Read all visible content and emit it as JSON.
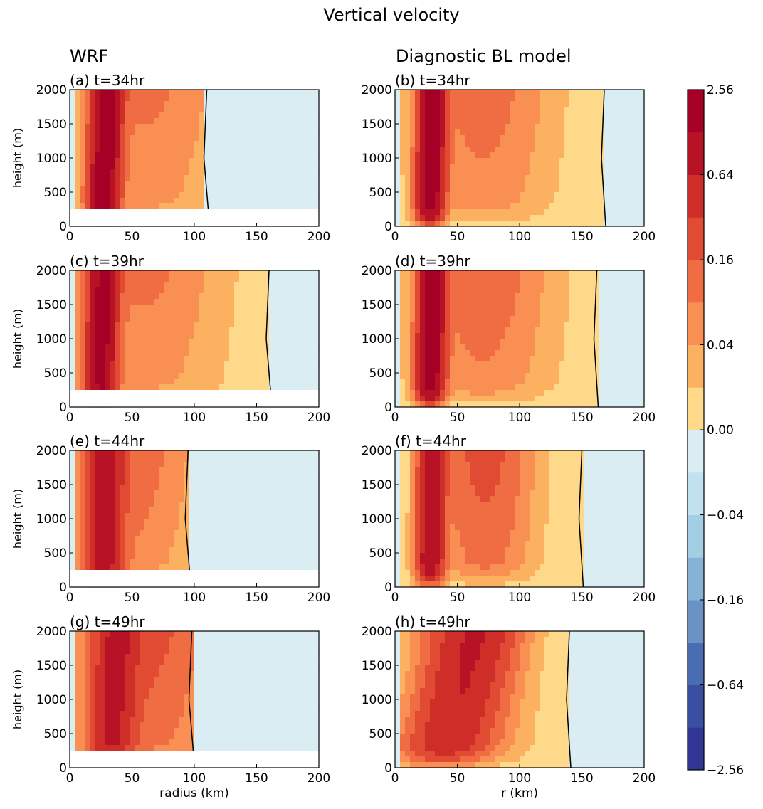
{
  "title": "Vertical velocity",
  "column_titles": [
    "WRF",
    "Diagnostic BL model"
  ],
  "colors": {
    "levels": [
      "#313695",
      "#3b4fa2",
      "#4a6cb0",
      "#6a93c4",
      "#86b3d5",
      "#a3cfe4",
      "#bfe2ee",
      "#d9edf3",
      "#fed98a",
      "#fcb161",
      "#f98f52",
      "#f06c43",
      "#e24b33",
      "#cf2e28",
      "#b71225",
      "#a50026"
    ],
    "contour": "#000000",
    "mask": "#ffffff"
  },
  "colorbar": {
    "ticks": [
      "2.56",
      "0.64",
      "0.16",
      "0.04",
      "0.00",
      "−0.04",
      "−0.16",
      "−0.64",
      "−2.56"
    ],
    "levels": [
      -2.56,
      -1.28,
      -0.64,
      -0.32,
      -0.16,
      -0.08,
      -0.04,
      -0.02,
      0.0,
      0.02,
      0.04,
      0.08,
      0.16,
      0.32,
      0.64,
      1.28,
      2.56
    ]
  },
  "chart_data": [
    {
      "type": "heatmap",
      "panel_label": "(a) t=34hr",
      "model": "WRF",
      "time_hr": 34,
      "ylabel": "height (m)",
      "xlabel": "",
      "xlim": [
        0,
        200
      ],
      "ylim": [
        0,
        2000
      ],
      "xticks": [
        "0",
        "50",
        "100",
        "150",
        "200"
      ],
      "yticks": [
        "0",
        "500",
        "1000",
        "1500",
        "2000"
      ],
      "data_floor_m": 250,
      "core_r_km": 26,
      "core_max": 2.0,
      "core_width_km": 9,
      "tilt_km": 4,
      "broad_amp": 0.08,
      "broad_center_km": 60,
      "broad_width_km": 45,
      "descent_r_km": 110
    },
    {
      "type": "heatmap",
      "panel_label": "(b) t=34hr",
      "model": "Diagnostic BL model",
      "time_hr": 34,
      "ylabel": "",
      "xlabel": "",
      "xlim": [
        0,
        200
      ],
      "ylim": [
        0,
        2000
      ],
      "xticks": [
        "0",
        "50",
        "100",
        "150",
        "200"
      ],
      "yticks": [
        "0",
        "500",
        "1000",
        "1500",
        "2000"
      ],
      "data_floor_m": 0,
      "core_r_km": 28,
      "core_max": 2.0,
      "core_width_km": 8,
      "tilt_km": 2,
      "broad_amp": 0.1,
      "broad_center_km": 70,
      "broad_width_km": 40,
      "descent_r_km": 168
    },
    {
      "type": "heatmap",
      "panel_label": "(c) t=39hr",
      "model": "WRF",
      "time_hr": 39,
      "ylabel": "height (m)",
      "xlabel": "",
      "xlim": [
        0,
        200
      ],
      "ylim": [
        0,
        2000
      ],
      "xticks": [
        "0",
        "50",
        "100",
        "150",
        "200"
      ],
      "yticks": [
        "0",
        "500",
        "1000",
        "1500",
        "2000"
      ],
      "data_floor_m": 250,
      "core_r_km": 24,
      "core_max": 1.6,
      "core_width_km": 9,
      "tilt_km": 3,
      "broad_amp": 0.08,
      "broad_center_km": 60,
      "broad_width_km": 45,
      "descent_r_km": 160
    },
    {
      "type": "heatmap",
      "panel_label": "(d) t=39hr",
      "model": "Diagnostic BL model",
      "time_hr": 39,
      "ylabel": "",
      "xlabel": "",
      "xlim": [
        0,
        200
      ],
      "ylim": [
        0,
        2000
      ],
      "xticks": [
        "0",
        "50",
        "100",
        "150",
        "200"
      ],
      "yticks": [
        "0",
        "500",
        "1000",
        "1500",
        "2000"
      ],
      "data_floor_m": 0,
      "core_r_km": 28,
      "core_max": 2.0,
      "core_width_km": 8,
      "tilt_km": 2,
      "broad_amp": 0.12,
      "broad_center_km": 70,
      "broad_width_km": 40,
      "descent_r_km": 162
    },
    {
      "type": "heatmap",
      "panel_label": "(e) t=44hr",
      "model": "WRF",
      "time_hr": 44,
      "ylabel": "height (m)",
      "xlabel": "",
      "xlim": [
        0,
        200
      ],
      "ylim": [
        0,
        2000
      ],
      "xticks": [
        "0",
        "50",
        "100",
        "150",
        "200"
      ],
      "yticks": [
        "0",
        "500",
        "1000",
        "1500",
        "2000"
      ],
      "data_floor_m": 250,
      "core_r_km": 26,
      "core_max": 1.0,
      "core_width_km": 11,
      "tilt_km": 3,
      "broad_amp": 0.12,
      "broad_center_km": 45,
      "broad_width_km": 40,
      "descent_r_km": 95
    },
    {
      "type": "heatmap",
      "panel_label": "(f) t=44hr",
      "model": "Diagnostic BL model",
      "time_hr": 44,
      "ylabel": "",
      "xlabel": "",
      "xlim": [
        0,
        200
      ],
      "ylim": [
        0,
        2000
      ],
      "xticks": [
        "0",
        "50",
        "100",
        "150",
        "200"
      ],
      "yticks": [
        "0",
        "500",
        "1000",
        "1500",
        "2000"
      ],
      "data_floor_m": 0,
      "core_r_km": 28,
      "core_max": 1.2,
      "core_width_km": 8,
      "tilt_km": 2,
      "broad_amp": 0.2,
      "broad_center_km": 72,
      "broad_width_km": 28,
      "descent_r_km": 150
    },
    {
      "type": "heatmap",
      "panel_label": "(g) t=49hr",
      "model": "WRF",
      "time_hr": 49,
      "ylabel": "height (m)",
      "xlabel": "radius (km)",
      "xlim": [
        0,
        200
      ],
      "ylim": [
        0,
        2000
      ],
      "xticks": [
        "0",
        "50",
        "100",
        "150",
        "200"
      ],
      "yticks": [
        "0",
        "500",
        "1000",
        "1500",
        "2000"
      ],
      "data_floor_m": 250,
      "core_r_km": 32,
      "core_max": 0.7,
      "core_width_km": 14,
      "tilt_km": 6,
      "broad_amp": 0.2,
      "broad_center_km": 60,
      "broad_width_km": 40,
      "descent_r_km": 98
    },
    {
      "type": "heatmap",
      "panel_label": "(h) t=49hr",
      "model": "Diagnostic BL model",
      "time_hr": 49,
      "ylabel": "",
      "xlabel": "r (km)",
      "xlim": [
        0,
        200
      ],
      "ylim": [
        0,
        2000
      ],
      "xticks": [
        "0",
        "50",
        "100",
        "150",
        "200"
      ],
      "yticks": [
        "0",
        "500",
        "1000",
        "1500",
        "2000"
      ],
      "data_floor_m": 0,
      "core_r_km": 35,
      "core_max": 0.5,
      "core_width_km": 25,
      "tilt_km": 30,
      "broad_amp": 0.2,
      "broad_center_km": 60,
      "broad_width_km": 30,
      "descent_r_km": 140
    }
  ]
}
